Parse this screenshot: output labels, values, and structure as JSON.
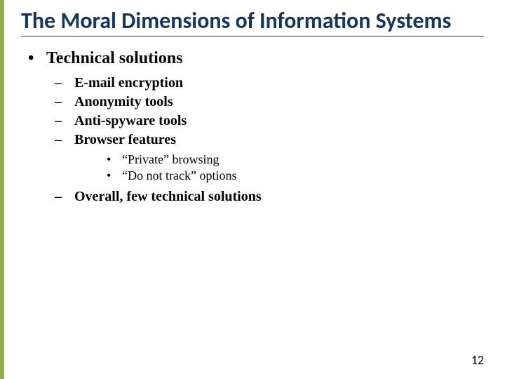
{
  "accent_border_colors": [
    "#8fa84a",
    "#c8a23c"
  ],
  "title_color": "#17365d",
  "title": "The Moral Dimensions of Information Systems",
  "level1": {
    "bullet": "•",
    "text": "Technical solutions"
  },
  "level2": {
    "dash": "–",
    "items": [
      "E-mail encryption",
      "Anonymity tools",
      "Anti-spyware tools",
      "Browser features"
    ],
    "final": "Overall, few technical solutions"
  },
  "level3": {
    "bullet": "•",
    "items": [
      "“Private” browsing",
      "“Do not track” options"
    ]
  },
  "page_number": "12"
}
